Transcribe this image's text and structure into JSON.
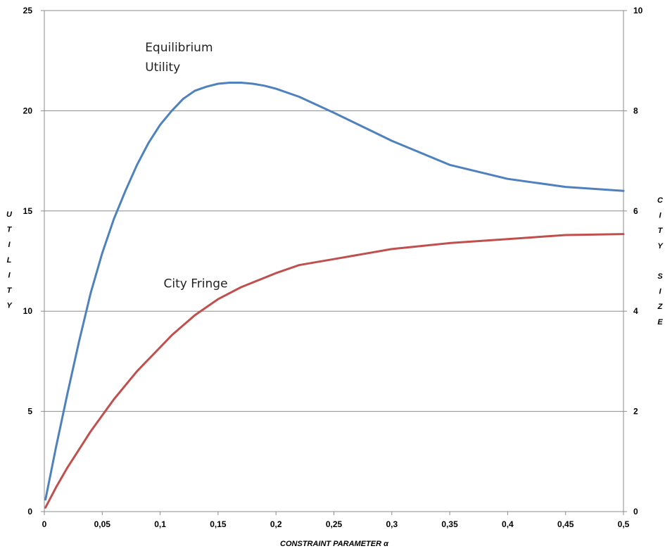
{
  "chart_data": {
    "type": "line",
    "xlabel": "CONSTRAINT PARAMETER α",
    "ylabel": "UTILITY",
    "y2label": "CITY SIZE",
    "xlim": [
      0,
      0.5
    ],
    "ylim": [
      0,
      25
    ],
    "y2lim": [
      0,
      10
    ],
    "x_ticks": [
      "0",
      "0,05",
      "0,1",
      "0,15",
      "0,2",
      "0,25",
      "0,3",
      "0,35",
      "0,4",
      "0,45",
      "0,5"
    ],
    "y_ticks": [
      "0",
      "5",
      "10",
      "15",
      "20",
      "25"
    ],
    "y2_ticks": [
      "0",
      "2",
      "4",
      "6",
      "8",
      "10"
    ],
    "grid": true,
    "legend": "none",
    "colors": {
      "utility": "#4f81bd",
      "fringe": "#c0504d"
    },
    "series": [
      {
        "name": "Equilibrium Utility",
        "axis": "left",
        "x": [
          0.001,
          0.01,
          0.02,
          0.03,
          0.04,
          0.05,
          0.06,
          0.07,
          0.08,
          0.09,
          0.1,
          0.11,
          0.12,
          0.13,
          0.14,
          0.15,
          0.16,
          0.17,
          0.18,
          0.19,
          0.2,
          0.22,
          0.25,
          0.3,
          0.35,
          0.4,
          0.45,
          0.5
        ],
        "y": [
          0.6,
          3.2,
          5.9,
          8.5,
          10.9,
          12.9,
          14.6,
          16.0,
          17.3,
          18.4,
          19.3,
          20.0,
          20.6,
          21.0,
          21.2,
          21.35,
          21.4,
          21.4,
          21.35,
          21.25,
          21.1,
          20.7,
          19.9,
          18.5,
          17.3,
          16.6,
          16.2,
          16.0
        ]
      },
      {
        "name": "City Fringe",
        "axis": "left",
        "x": [
          0.001,
          0.01,
          0.02,
          0.03,
          0.04,
          0.05,
          0.06,
          0.07,
          0.08,
          0.09,
          0.1,
          0.11,
          0.12,
          0.13,
          0.14,
          0.15,
          0.17,
          0.2,
          0.22,
          0.25,
          0.3,
          0.35,
          0.4,
          0.45,
          0.5
        ],
        "y": [
          0.2,
          1.2,
          2.2,
          3.1,
          4.0,
          4.8,
          5.6,
          6.3,
          7.0,
          7.6,
          8.2,
          8.8,
          9.3,
          9.8,
          10.2,
          10.6,
          11.2,
          11.9,
          12.3,
          12.6,
          13.1,
          13.4,
          13.6,
          13.8,
          13.85
        ]
      }
    ],
    "annotations": [
      {
        "lines": [
          "Equilibrium",
          "Utility"
        ],
        "x": 0.087,
        "y": 21.2
      },
      {
        "lines": [
          "City Fringe"
        ],
        "x": 0.103,
        "y": 11.4
      }
    ]
  }
}
